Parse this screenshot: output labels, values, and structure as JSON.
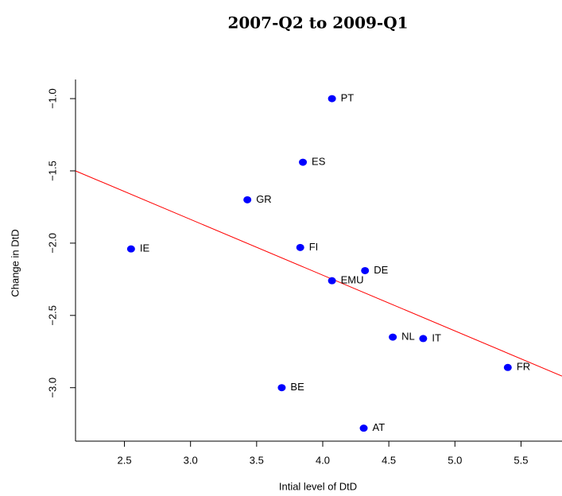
{
  "chart_data": {
    "type": "scatter",
    "title": "2007-Q2 to 2009-Q1",
    "x_label": "Intial level of DtD",
    "y_label": "Change in DtD",
    "labels": [
      "PT",
      "ES",
      "GR",
      "IE",
      "FI",
      "DE",
      "EMU",
      "NL",
      "IT",
      "FR",
      "BE",
      "AT"
    ],
    "series": [
      {
        "color": "#0000ff",
        "x": [
          4.07,
          3.85,
          3.43,
          2.55,
          3.83,
          4.32,
          4.07,
          4.53,
          4.76,
          5.4,
          3.69,
          4.31
        ],
        "values": [
          -1.0,
          -1.44,
          -1.7,
          -2.04,
          -2.03,
          -2.19,
          -2.26,
          -2.65,
          -2.66,
          -2.86,
          -3.0,
          -3.28
        ]
      }
    ],
    "fit_line": {
      "color": "#ff0000",
      "x": [
        2.13,
        5.81
      ],
      "values": [
        -1.5,
        -2.92
      ]
    },
    "xlim": [
      2.13,
      5.81
    ],
    "ylim": [
      -3.37,
      -0.91
    ],
    "xticks": [
      2.5,
      {
        "value": 3,
        "label": "3.0"
      },
      3.5,
      {
        "value": 4,
        "label": "4.0"
      },
      4.5,
      {
        "value": 5,
        "label": "5.0"
      },
      5.5
    ],
    "yticks": [
      {
        "value": -1,
        "label": "−1.0"
      },
      {
        "value": -1.5,
        "label": "−1.5"
      },
      {
        "value": -2,
        "label": "−2.0"
      },
      {
        "value": -2.5,
        "label": "−2.5"
      },
      {
        "value": -3,
        "label": "−3.0"
      }
    ]
  }
}
